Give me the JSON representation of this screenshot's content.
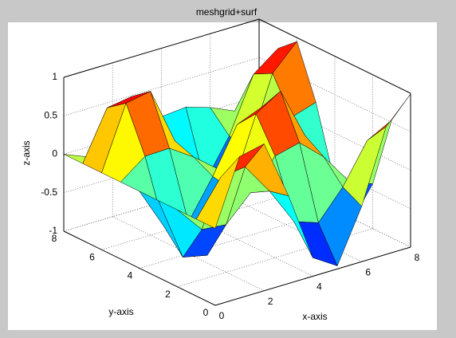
{
  "chart_data": {
    "type": "surface",
    "title": "meshgrid+surf",
    "xlabel": "x-axis",
    "ylabel": "y-axis",
    "zlabel": "z-axis",
    "colormap": "jet",
    "grid": true,
    "x": [
      0,
      1,
      2,
      3,
      4,
      5,
      6,
      7,
      8
    ],
    "y": [
      0,
      1,
      2,
      3,
      4,
      5,
      6,
      7,
      8
    ],
    "z": [
      [
        0,
        0.84,
        0.91,
        0.14,
        -0.76,
        -0.96,
        -0.28,
        0.66,
        0.99
      ],
      [
        0,
        0.45,
        0.49,
        0.08,
        -0.41,
        -0.52,
        -0.15,
        0.36,
        0.53
      ],
      [
        0,
        -0.35,
        -0.38,
        -0.06,
        0.32,
        0.4,
        0.12,
        -0.28,
        -0.42
      ],
      [
        0,
        -0.83,
        -0.9,
        -0.14,
        0.75,
        0.95,
        0.28,
        -0.65,
        -0.98
      ],
      [
        0,
        -0.55,
        -0.59,
        -0.09,
        0.49,
        0.62,
        0.18,
        -0.43,
        -0.64
      ],
      [
        0,
        0.24,
        0.25,
        0.04,
        -0.21,
        -0.27,
        -0.08,
        0.18,
        0.28
      ],
      [
        0,
        0.81,
        0.87,
        0.13,
        -0.73,
        -0.92,
        -0.27,
        0.63,
        0.95
      ],
      [
        0,
        0.63,
        0.68,
        0.11,
        -0.57,
        -0.72,
        -0.21,
        0.5,
        0.74
      ],
      [
        0,
        -0.13,
        -0.14,
        -0.02,
        0.11,
        0.14,
        0.04,
        -0.1,
        -0.15
      ]
    ],
    "xlim": [
      0,
      8
    ],
    "ylim": [
      0,
      8
    ],
    "zlim": [
      -1,
      1
    ],
    "xticks": [
      0,
      2,
      4,
      6,
      8
    ],
    "yticks": [
      0,
      2,
      4,
      6,
      8
    ],
    "zticks": [
      -1,
      -0.5,
      0,
      0.5,
      1
    ]
  }
}
